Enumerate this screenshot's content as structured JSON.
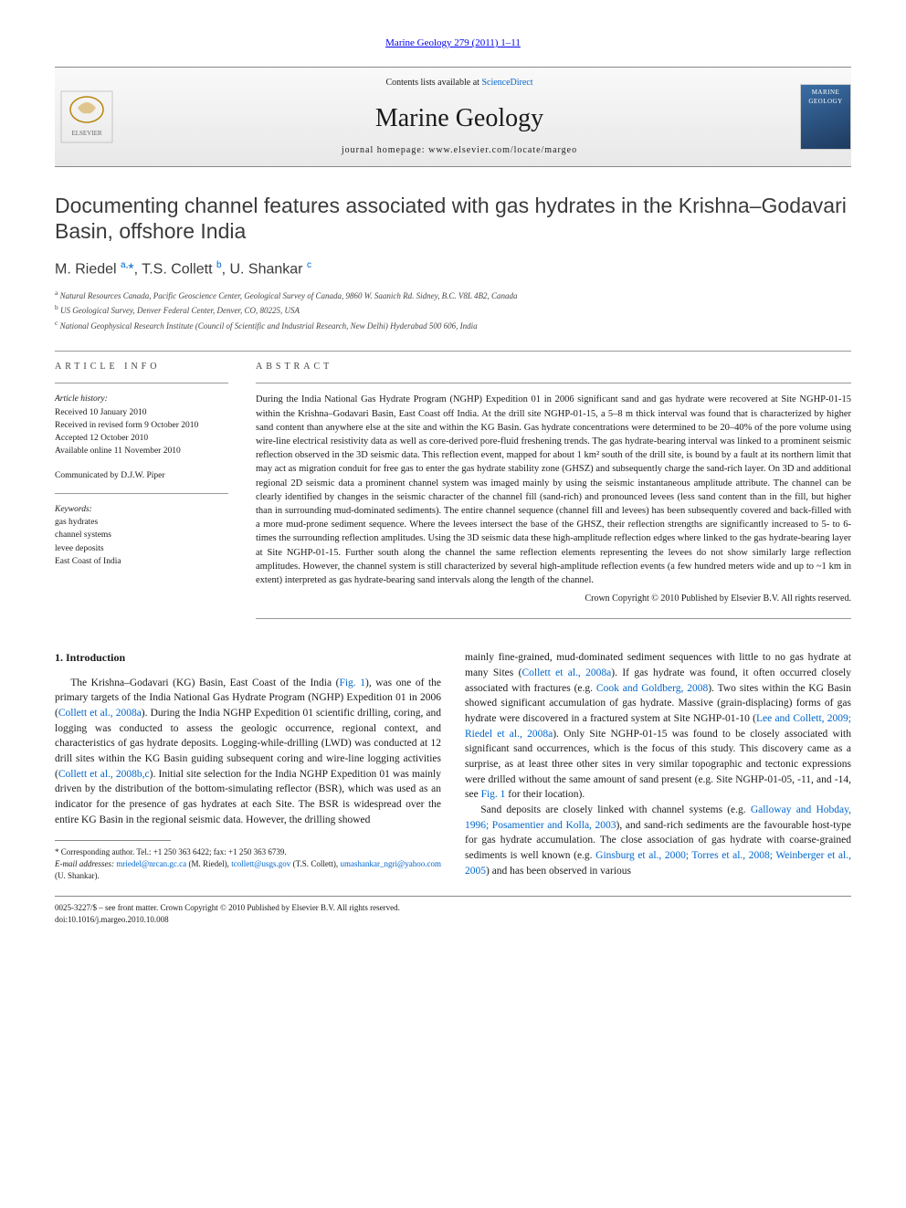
{
  "header": {
    "citation": "Marine Geology 279 (2011) 1–11",
    "contents_line_prefix": "Contents lists available at ",
    "contents_link": "ScienceDirect",
    "journal_name": "Marine Geology",
    "homepage_label": "journal homepage: ",
    "homepage_url": "www.elsevier.com/locate/margeo",
    "cover_label": "MARINE GEOLOGY"
  },
  "article": {
    "title": "Documenting channel features associated with gas hydrates in the Krishna–Godavari Basin, offshore India",
    "authors_html": "M. Riedel <sup>a,</sup><a href='#'>*</a>, T.S. Collett <sup>b</sup>, U. Shankar <sup>c</sup>",
    "affiliations": [
      {
        "sup": "a",
        "text": "Natural Resources Canada, Pacific Geoscience Center, Geological Survey of Canada, 9860 W. Saanich Rd. Sidney, B.C. V8L 4B2, Canada"
      },
      {
        "sup": "b",
        "text": "US Geological Survey, Denver Federal Center, Denver, CO, 80225, USA"
      },
      {
        "sup": "c",
        "text": "National Geophysical Research Institute (Council of Scientific and Industrial Research, New Delhi) Hyderabad 500 606, India"
      }
    ]
  },
  "info": {
    "article_info_head": "article info",
    "history_label": "Article history:",
    "history": [
      "Received 10 January 2010",
      "Received in revised form 9 October 2010",
      "Accepted 12 October 2010",
      "Available online 11 November 2010"
    ],
    "communicated": "Communicated by D.J.W. Piper",
    "keywords_label": "Keywords:",
    "keywords": [
      "gas hydrates",
      "channel systems",
      "levee deposits",
      "East Coast of India"
    ]
  },
  "abstract": {
    "head": "abstract",
    "text": "During the India National Gas Hydrate Program (NGHP) Expedition 01 in 2006 significant sand and gas hydrate were recovered at Site NGHP-01-15 within the Krishna–Godavari Basin, East Coast off India. At the drill site NGHP-01-15, a 5–8 m thick interval was found that is characterized by higher sand content than anywhere else at the site and within the KG Basin. Gas hydrate concentrations were determined to be 20–40% of the pore volume using wire-line electrical resistivity data as well as core-derived pore-fluid freshening trends. The gas hydrate-bearing interval was linked to a prominent seismic reflection observed in the 3D seismic data. This reflection event, mapped for about 1 km² south of the drill site, is bound by a fault at its northern limit that may act as migration conduit for free gas to enter the gas hydrate stability zone (GHSZ) and subsequently charge the sand-rich layer. On 3D and additional regional 2D seismic data a prominent channel system was imaged mainly by using the seismic instantaneous amplitude attribute. The channel can be clearly identified by changes in the seismic character of the channel fill (sand-rich) and pronounced levees (less sand content than in the fill, but higher than in surrounding mud-dominated sediments). The entire channel sequence (channel fill and levees) has been subsequently covered and back-filled with a more mud-prone sediment sequence. Where the levees intersect the base of the GHSZ, their reflection strengths are significantly increased to 5- to 6-times the surrounding reflection amplitudes. Using the 3D seismic data these high-amplitude reflection edges where linked to the gas hydrate-bearing layer at Site NGHP-01-15. Further south along the channel the same reflection elements representing the levees do not show similarly large reflection amplitudes. However, the channel system is still characterized by several high-amplitude reflection events (a few hundred meters wide and up to ~1 km in extent) interpreted as gas hydrate-bearing sand intervals along the length of the channel.",
    "copyright": "Crown Copyright © 2010 Published by Elsevier B.V. All rights reserved."
  },
  "body": {
    "heading": "1. Introduction",
    "col1_parts": [
      {
        "t": "text",
        "v": "The Krishna–Godavari (KG) Basin, East Coast of the India ("
      },
      {
        "t": "link",
        "v": "Fig. 1"
      },
      {
        "t": "text",
        "v": "), was one of the primary targets of the India National Gas Hydrate Program (NGHP) Expedition 01 in 2006 ("
      },
      {
        "t": "link",
        "v": "Collett et al., 2008a"
      },
      {
        "t": "text",
        "v": "). During the India NGHP Expedition 01 scientific drilling, coring, and logging was conducted to assess the geologic occurrence, regional context, and characteristics of gas hydrate deposits. Logging-while-drilling (LWD) was conducted at 12 drill sites within the KG Basin guiding subsequent coring and wire-line logging activities ("
      },
      {
        "t": "link",
        "v": "Collett et al., 2008b,c"
      },
      {
        "t": "text",
        "v": "). Initial site selection for the India NGHP Expedition 01 was mainly driven by the distribution of the bottom-simulating reflector (BSR), which was used as an indicator for the presence of gas hydrates at each Site. The BSR is widespread over the entire KG Basin in the regional seismic data. However, the drilling showed"
      }
    ],
    "col2_parts": [
      {
        "t": "text",
        "v": "mainly fine-grained, mud-dominated sediment sequences with little to no gas hydrate at many Sites ("
      },
      {
        "t": "link",
        "v": "Collett et al., 2008a"
      },
      {
        "t": "text",
        "v": "). If gas hydrate was found, it often occurred closely associated with fractures (e.g. "
      },
      {
        "t": "link",
        "v": "Cook and Goldberg, 2008"
      },
      {
        "t": "text",
        "v": "). Two sites within the KG Basin showed significant accumulation of gas hydrate. Massive (grain-displacing) forms of gas hydrate were discovered in a fractured system at Site NGHP-01-10 ("
      },
      {
        "t": "link",
        "v": "Lee and Collett, 2009; Riedel et al., 2008a"
      },
      {
        "t": "text",
        "v": "). Only Site NGHP-01-15 was found to be closely associated with significant sand occurrences, which is the focus of this study. This discovery came as a surprise, as at least three other sites in very similar topographic and tectonic expressions were drilled without the same amount of sand present (e.g. Site NGHP-01-05, -11, and -14, see "
      },
      {
        "t": "link",
        "v": "Fig. 1"
      },
      {
        "t": "text",
        "v": " for their location)."
      }
    ],
    "col2_p2_parts": [
      {
        "t": "text",
        "v": "Sand deposits are closely linked with channel systems (e.g. "
      },
      {
        "t": "link",
        "v": "Galloway and Hobday, 1996; Posamentier and Kolla, 2003"
      },
      {
        "t": "text",
        "v": "), and sand-rich sediments are the favourable host-type for gas hydrate accumulation. The close association of gas hydrate with coarse-grained sediments is well known (e.g. "
      },
      {
        "t": "link",
        "v": "Ginsburg et al., 2000; Torres et al., 2008; Weinberger et al., 2005"
      },
      {
        "t": "text",
        "v": ") and has been observed in various"
      }
    ]
  },
  "footnotes": {
    "corr_label": "* Corresponding author. Tel.: +1 250 363 6422; fax: +1 250 363 6739.",
    "email_label": "E-mail addresses: ",
    "emails": [
      {
        "addr": "mriedel@nrcan.gc.ca",
        "who": "(M. Riedel)"
      },
      {
        "addr": "tcollett@usgs.gov",
        "who": "(T.S. Collett)"
      },
      {
        "addr": "umashankar_ngri@yahoo.com",
        "who": "(U. Shankar)."
      }
    ]
  },
  "bottom": {
    "line1": "0025-3227/$ – see front matter. Crown Copyright © 2010 Published by Elsevier B.V. All rights reserved.",
    "line2": "doi:10.1016/j.margeo.2010.10.008"
  },
  "colors": {
    "link": "#0066cc",
    "text": "#1a1a1a",
    "heading": "#3a3a3a",
    "rule": "#999999"
  }
}
